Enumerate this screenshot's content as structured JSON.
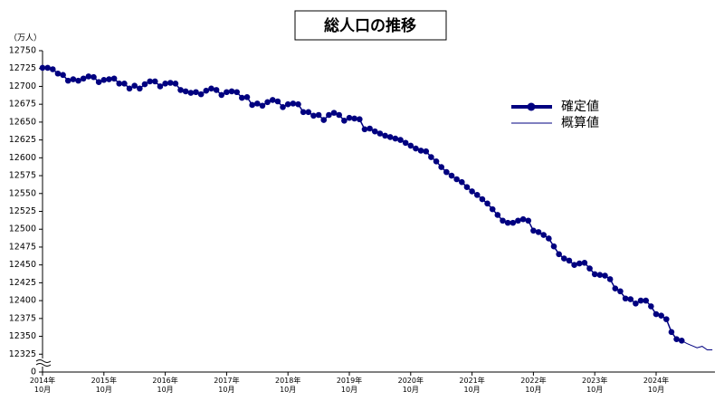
{
  "chart_data": {
    "type": "line",
    "title": "総人口の推移",
    "y_unit": "（万人）",
    "categories": [
      "2014年\n10月",
      null,
      null,
      null,
      null,
      null,
      null,
      null,
      null,
      null,
      null,
      null,
      "2015年\n10月",
      null,
      null,
      null,
      null,
      null,
      null,
      null,
      null,
      null,
      null,
      null,
      "2016年\n10月",
      null,
      null,
      null,
      null,
      null,
      null,
      null,
      null,
      null,
      null,
      null,
      "2017年\n10月",
      null,
      null,
      null,
      null,
      null,
      null,
      null,
      null,
      null,
      null,
      null,
      "2018年\n10月",
      null,
      null,
      null,
      null,
      null,
      null,
      null,
      null,
      null,
      null,
      null,
      "2019年\n10月",
      null,
      null,
      null,
      null,
      null,
      null,
      null,
      null,
      null,
      null,
      null,
      "2020年\n10月",
      null,
      null,
      null,
      null,
      null,
      null,
      null,
      null,
      null,
      null,
      null,
      "2021年\n10月",
      null,
      null,
      null,
      null,
      null,
      null,
      null,
      null,
      null,
      null,
      null,
      "2022年\n10月",
      null,
      null,
      null,
      null,
      null,
      null,
      null,
      null,
      null,
      null,
      null,
      "2023年\n10月",
      null,
      null,
      null,
      null,
      null,
      null,
      null,
      null,
      null,
      null,
      null,
      "2024年\n10月",
      null,
      null,
      null,
      null,
      null,
      null,
      null,
      null,
      null,
      null,
      null
    ],
    "series": [
      {
        "name": "確定値",
        "color": "#000080",
        "markers": true,
        "values": [
          12726,
          12726,
          12724,
          12718,
          12716,
          12708,
          12710,
          12708,
          12711,
          12714,
          12713,
          12706,
          12709,
          12710,
          12711,
          12704,
          12704,
          12697,
          12701,
          12697,
          12703,
          12707,
          12707,
          12700,
          12704,
          12705,
          12704,
          12695,
          12693,
          12691,
          12692,
          12689,
          12694,
          12697,
          12695,
          12688,
          12692,
          12693,
          12692,
          12684,
          12685,
          12674,
          12676,
          12673,
          12678,
          12681,
          12679,
          12671,
          12675,
          12676,
          12675,
          12664,
          12664,
          12659,
          12660,
          12653,
          12660,
          12663,
          12660,
          12652,
          12656,
          12655,
          12654,
          12640,
          12641,
          12637,
          12634,
          12631,
          12629,
          12627,
          12625,
          12621,
          12617,
          12613,
          12610,
          12609,
          12601,
          12595,
          12587,
          12580,
          12575,
          12570,
          12566,
          12559,
          12553,
          12548,
          12542,
          12536,
          12528,
          12520,
          12512,
          12509,
          12509,
          12512,
          12514,
          12512,
          12498,
          12496,
          12492,
          12487,
          12476,
          12465,
          12459,
          12456,
          12450,
          12452,
          12453,
          12445,
          12437,
          12436,
          12435,
          12430,
          12417,
          12413,
          12403,
          12402,
          12396,
          12400,
          12400,
          12392,
          12381,
          12379,
          12374,
          12356,
          12346,
          12344,
          null,
          null,
          null,
          null,
          null,
          null
        ]
      },
      {
        "name": "概算値",
        "color": "#000080",
        "markers": false,
        "values": [
          null,
          null,
          null,
          null,
          null,
          null,
          null,
          null,
          null,
          null,
          null,
          null,
          null,
          null,
          null,
          null,
          null,
          null,
          null,
          null,
          null,
          null,
          null,
          null,
          null,
          null,
          null,
          null,
          null,
          null,
          null,
          null,
          null,
          null,
          null,
          null,
          null,
          null,
          null,
          null,
          null,
          null,
          null,
          null,
          null,
          null,
          null,
          null,
          null,
          null,
          null,
          null,
          null,
          null,
          null,
          null,
          null,
          null,
          null,
          null,
          null,
          null,
          null,
          null,
          null,
          null,
          null,
          null,
          null,
          null,
          null,
          null,
          null,
          null,
          null,
          null,
          null,
          null,
          null,
          null,
          null,
          null,
          null,
          null,
          null,
          null,
          null,
          null,
          null,
          null,
          null,
          null,
          null,
          null,
          null,
          null,
          null,
          null,
          null,
          null,
          null,
          null,
          null,
          null,
          null,
          null,
          null,
          null,
          null,
          null,
          null,
          null,
          null,
          null,
          null,
          null,
          null,
          null,
          null,
          null,
          null,
          null,
          null,
          null,
          null,
          12344,
          12340,
          12337,
          12334,
          12336,
          12331,
          12331
        ]
      }
    ],
    "ylim": [
      12300,
      12750
    ],
    "axis_break": true,
    "yticks": [
      0,
      12325,
      12350,
      12375,
      12400,
      12425,
      12450,
      12475,
      12500,
      12525,
      12550,
      12575,
      12600,
      12625,
      12650,
      12675,
      12700,
      12725,
      12750
    ],
    "legend": "upper right",
    "grid": false
  }
}
